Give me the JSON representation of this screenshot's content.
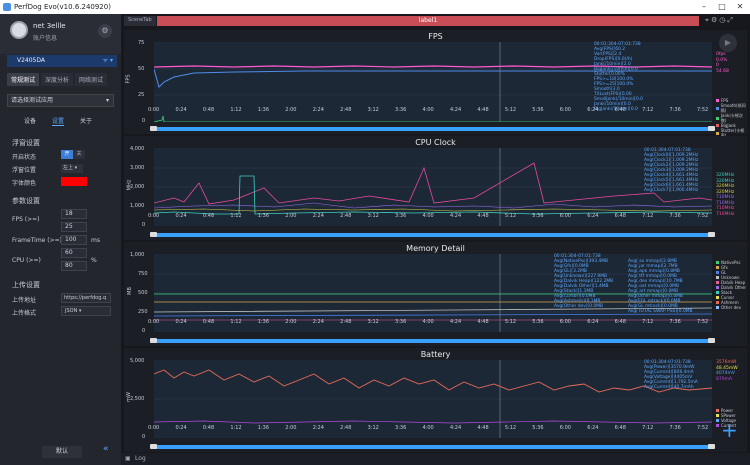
{
  "window": {
    "title": "PerfDog Evo(v10.6.240920)"
  },
  "user": {
    "name": "net 3ellle",
    "info": "账户信息"
  },
  "device": {
    "name": "V2405DA"
  },
  "mode_tabs": [
    "常规测试",
    "深度分析",
    "网络测试"
  ],
  "app_select": {
    "placeholder": "请选择测试应用"
  },
  "sub_tabs": [
    "设备",
    "设置",
    "关于"
  ],
  "settings": {
    "float_title": "浮窗设置",
    "enable_label": "开启状态",
    "on": "开",
    "off": "关",
    "pos_label": "浮窗位置",
    "pos_value": "左上",
    "color_label": "字体颜色",
    "param_title": "参数设置",
    "fps_label": "FPS (>=)",
    "fps_v1": "18",
    "fps_v2": "25",
    "frametime_label": "FrameTime (>=)",
    "frametime_v": "100",
    "frametime_unit": "ms",
    "cpu_label": "CPU (>=)",
    "cpu_v1": "60",
    "cpu_v2": "80",
    "cpu_unit": "%",
    "upload_title": "上传设置",
    "upload_url_label": "上传地址",
    "upload_url": "https://perfdog.q",
    "upload_fmt_label": "上传格式",
    "upload_fmt": "JSON",
    "default_btn": "默认"
  },
  "tabs": {
    "scene": "SceneTab",
    "label": "label1"
  },
  "time_ticks": [
    "0:00",
    "0:24",
    "0:48",
    "1:12",
    "1:36",
    "2:00",
    "2:24",
    "2:48",
    "3:12",
    "3:36",
    "4:00",
    "4:24",
    "4:48",
    "5:12",
    "5:36",
    "6:00",
    "6:24",
    "6:48",
    "7:12",
    "7:36",
    "7:52"
  ],
  "charts": {
    "fps": {
      "title": "FPS",
      "ylabel": "FPS",
      "yticks": [
        "75",
        "50",
        "25",
        "0"
      ],
      "stats": "00:01:304-07:01:738\nAvg(FPS)[60.2\nVar(FPS)[2.4\nDrop(FPS)[0.0(/h)\nJank(/10min)[2.0\nBigJank(/10min)[0.0\nStutter[0.00%\nFPS>=18[100.0%\nFPS>=25[100.0%\nSmooth[3.0\nTXLost(FPS)[0.00\nSmallJank(/10min)[0.0\nJank(/10min)[0.0\nBigJank(/10min)[0.0",
      "legend": [
        "FPS",
        "Smooth(帧间隔)",
        "Jank(卡顿次数)",
        "BigJank",
        "Stutter(卡顿率)",
        "TXLost(FPS)"
      ],
      "side": [
        "0fps",
        "0.0%",
        "0",
        "54.68"
      ]
    },
    "cpu": {
      "title": "CPU Clock",
      "ylabel": "MHz",
      "yticks": [
        "4,000",
        "3,000",
        "2,000",
        "1,000",
        "0"
      ],
      "stats": "00:01:304-07:01:738\nAvg(Clock0)[1,009.2MHz\nAvg(Clock1)[1,009.2MHz\nAvg(Clock2)[1,009.2MHz\nAvg(Clock3)[1,009.2MHz\nAvg(Clock4)[1,661.4MHz\nAvg(Clock5)[1,661.4MHz\nAvg(Clock6)[1,661.4MHz\nAvg(Clock7)[1,900.4MHz",
      "side": [
        "320MHz",
        "320MHz",
        "320MHz",
        "320MHz",
        "710MHz",
        "710MHz",
        "710MHz",
        "710MHz"
      ]
    },
    "memory": {
      "title": "Memory Detail",
      "ylabel": "MB",
      "yticks": [
        "1,000",
        "750",
        "500",
        "250",
        "0"
      ],
      "stats": "00:01:304-07:01:738\nAvg(NativePss)[393.4MB\nAvg(Gfx)[0.0MB\nAvg(GL)[3.2MB\nAvg(Unknown)[227.9MB\nAvg(Dalvik Heap)[122.2MB\nAvg(Dalvik Other)[1.4MB\nAvg(Stack)[1.1MB\nAvg(Cursor)[0.0MB\nAvg(Ashmem)[0.1MB\nAvg(Other dev)[0.0MB",
      "stats2": "Avg(.so mmap)[2.8MB\nAvg(.jar mmap)[2.7MB\nAvg(.apk mmap)[0.8MB\nAvg(.ttf mmap)[0.0MB\nAvg(.dex mmap)[10.7MB\nAvg(.oat mmap)[0.0MB\nAvg(.art mmap)[0.0MB\nAvg(Other mmap)[0.0MB\nAvg(EGL mtrack)[0.0MB\nAvg(GL mtrack)[0.0MB\nAvg(TOTAL SWAP PSS)[0.0MB",
      "legend": [
        "NativePss",
        "Gfx",
        "GL",
        "Unknown",
        "Dalvik Heap",
        "Dalvik Other",
        "Stack",
        "Cursor",
        "Ashmem",
        "Other dev"
      ]
    },
    "battery": {
      "title": "Battery",
      "ylabel": "mW",
      "yticks": [
        "5,000",
        "2,500",
        "0"
      ],
      "stats": "00:01:304-07:01:738\nAvg(Power)[3570.9mW\nAvg(Current)[808.4mA\nAvg(Voltage)[4405mV\nAvg(Current)[1,792.5mA\nAvg(Current)[40.7mAh",
      "legend": [
        "Power",
        "SPower",
        "Voltage",
        "Current"
      ],
      "side": [
        "3576mW",
        "48.45mW",
        "4074mV",
        "870mA"
      ]
    }
  },
  "bottom": {
    "log": "Log"
  }
}
